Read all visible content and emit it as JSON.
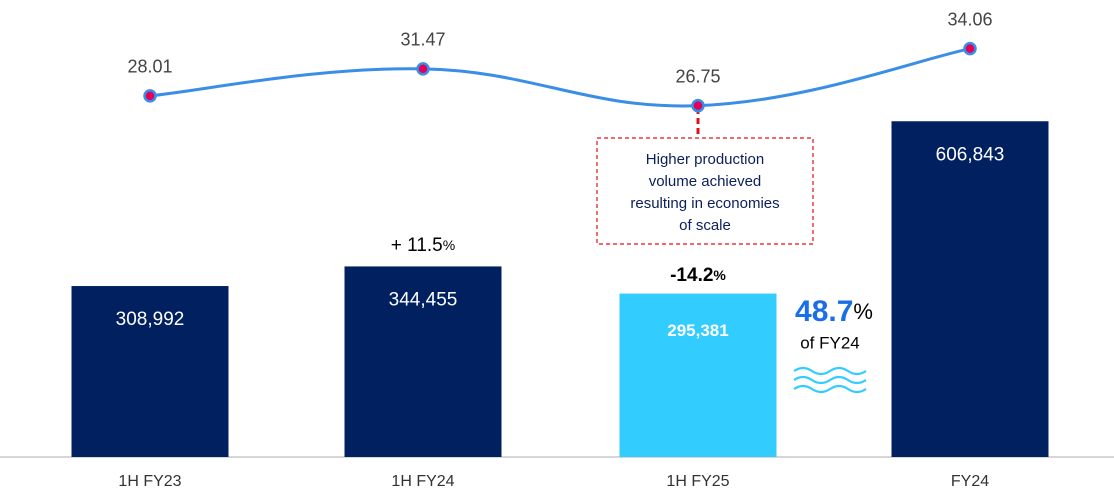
{
  "chart_data": {
    "type": "bar_line",
    "categories": [
      "1H FY23",
      "1H FY24",
      "1H FY25",
      "FY24"
    ],
    "series": [
      {
        "type": "bar",
        "values": [
          308992,
          344455,
          295381,
          606843
        ],
        "value_labels": [
          "308,992",
          "344,455",
          "295,381",
          "606,843"
        ],
        "colors": [
          "#002060",
          "#002060",
          "#33ccff",
          "#002060"
        ]
      },
      {
        "type": "line",
        "axis": "y2",
        "values": [
          28.01,
          31.47,
          26.75,
          34.06
        ],
        "color": "#3a8ee6",
        "marker_color": "#e0005a"
      }
    ],
    "ylim": [
      0,
      826000
    ],
    "y2lim": [
      -18.3,
      40.3
    ],
    "annotations": [
      {
        "text": "+ 11.5",
        "unit": "%"
      },
      {
        "text": "-14.2",
        "unit": "%"
      },
      {
        "text": "48.7",
        "unit": "%",
        "caption": "of FY24"
      }
    ],
    "callout": [
      "Higher production",
      "volume achieved",
      "resulting in economies",
      "of scale"
    ]
  }
}
